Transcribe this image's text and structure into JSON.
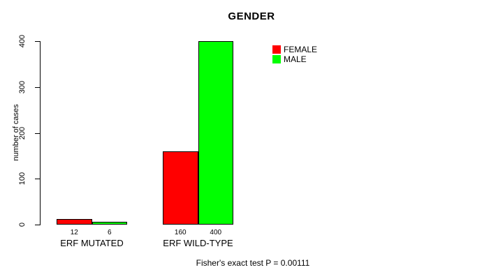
{
  "chart_data": {
    "type": "bar",
    "title": "GENDER",
    "ylabel": "number of cases",
    "xlabel": "",
    "categories": [
      "ERF MUTATED",
      "ERF WILD-TYPE"
    ],
    "series": [
      {
        "name": "FEMALE",
        "color": "#ff0000",
        "values": [
          12,
          160
        ]
      },
      {
        "name": "MALE",
        "color": "#00ff00",
        "values": [
          6,
          400
        ]
      }
    ],
    "bar_value_labels": [
      "12",
      "6",
      "160",
      "400"
    ],
    "yticks": [
      0,
      100,
      200,
      300,
      400
    ],
    "ylim": [
      0,
      400
    ],
    "grid": false,
    "legend_position": "top-right",
    "legend": [
      "FEMALE",
      "MALE"
    ],
    "annotation": "Fisher's exact test P = 0.00111",
    "bar_border_color": "#000000",
    "axis_color": "#000000"
  }
}
